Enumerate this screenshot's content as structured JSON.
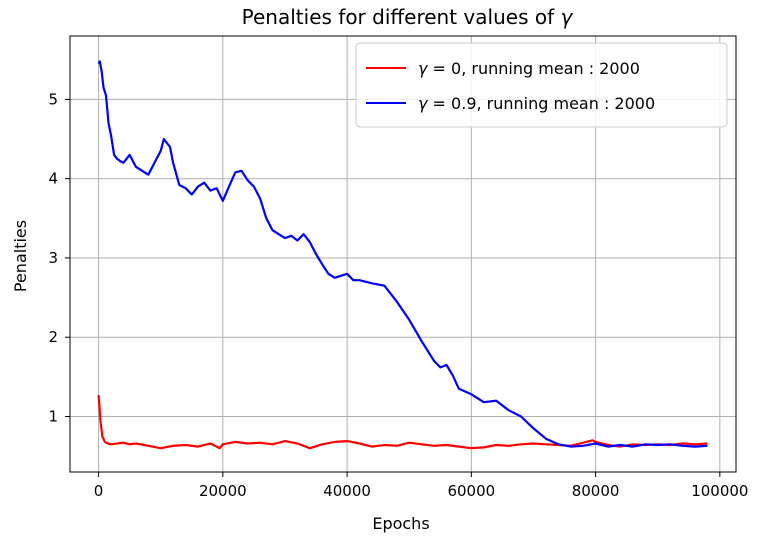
{
  "chart_data": {
    "type": "line",
    "title_prefix": "Penalties for different values of ",
    "title_symbol": "γ",
    "xlabel": "Epochs",
    "ylabel": "Penalties",
    "xlim": [
      -4600,
      102600
    ],
    "ylim": [
      0.3,
      5.8
    ],
    "x_ticks": [
      0,
      20000,
      40000,
      60000,
      80000,
      100000
    ],
    "x_tick_labels": [
      "0",
      "20000",
      "40000",
      "60000",
      "80000",
      "100000"
    ],
    "y_ticks": [
      1,
      2,
      3,
      4,
      5
    ],
    "y_tick_labels": [
      "1",
      "2",
      "3",
      "4",
      "5"
    ],
    "grid": true,
    "legend_position": "upper right",
    "series": [
      {
        "name": "γ = 0, running mean : 2000",
        "legend_symbol": "γ",
        "legend_text": " = 0, running mean : 2000",
        "color": "#ff0000",
        "x": [
          0,
          300,
          600,
          1000,
          1500,
          2000,
          3000,
          4000,
          5000,
          6000,
          8000,
          10000,
          12000,
          14000,
          16000,
          18000,
          19500,
          20000,
          22000,
          24000,
          26000,
          28000,
          30000,
          32000,
          34000,
          36000,
          38000,
          40000,
          42000,
          44000,
          46000,
          48000,
          50000,
          52000,
          54000,
          56000,
          58000,
          60000,
          62000,
          64000,
          66000,
          68000,
          70000,
          72000,
          74000,
          76000,
          78000,
          79500,
          80000,
          82000,
          84000,
          86000,
          88000,
          90000,
          92000,
          94000,
          96000,
          98000
        ],
        "y": [
          1.27,
          0.95,
          0.75,
          0.68,
          0.66,
          0.65,
          0.66,
          0.67,
          0.65,
          0.66,
          0.63,
          0.6,
          0.63,
          0.64,
          0.62,
          0.66,
          0.6,
          0.65,
          0.68,
          0.66,
          0.67,
          0.65,
          0.69,
          0.66,
          0.6,
          0.65,
          0.68,
          0.69,
          0.66,
          0.62,
          0.64,
          0.63,
          0.67,
          0.65,
          0.63,
          0.64,
          0.62,
          0.6,
          0.61,
          0.64,
          0.63,
          0.65,
          0.66,
          0.65,
          0.64,
          0.63,
          0.67,
          0.7,
          0.68,
          0.64,
          0.62,
          0.65,
          0.64,
          0.65,
          0.64,
          0.66,
          0.65,
          0.66
        ]
      },
      {
        "name": "γ = 0.9, running mean : 2000",
        "legend_symbol": "γ",
        "legend_text": " = 0.9, running mean : 2000",
        "color": "#0000ff",
        "x": [
          0,
          200,
          500,
          800,
          1200,
          1600,
          2000,
          2500,
          3000,
          3500,
          4000,
          5000,
          6000,
          7000,
          8000,
          9000,
          10000,
          10500,
          11500,
          12000,
          13000,
          14000,
          15000,
          16000,
          17000,
          18000,
          19000,
          20000,
          21000,
          22000,
          23000,
          24000,
          25000,
          26000,
          27000,
          28000,
          29000,
          30000,
          31000,
          32000,
          33000,
          34000,
          35000,
          36000,
          37000,
          38000,
          40000,
          41000,
          42000,
          44000,
          46000,
          48000,
          50000,
          52000,
          54000,
          55000,
          56000,
          57000,
          58000,
          60000,
          62000,
          64000,
          66000,
          68000,
          70000,
          72000,
          74000,
          76000,
          78000,
          80000,
          82000,
          84000,
          86000,
          88000,
          90000,
          92000,
          94000,
          96000,
          98000
        ],
        "y": [
          5.45,
          5.48,
          5.35,
          5.15,
          5.05,
          4.7,
          4.55,
          4.3,
          4.25,
          4.22,
          4.2,
          4.3,
          4.15,
          4.1,
          4.05,
          4.2,
          4.35,
          4.5,
          4.4,
          4.2,
          3.92,
          3.88,
          3.8,
          3.9,
          3.95,
          3.85,
          3.88,
          3.72,
          3.9,
          4.08,
          4.1,
          3.98,
          3.9,
          3.75,
          3.5,
          3.35,
          3.3,
          3.25,
          3.28,
          3.22,
          3.3,
          3.2,
          3.05,
          2.92,
          2.8,
          2.75,
          2.8,
          2.72,
          2.72,
          2.68,
          2.65,
          2.45,
          2.22,
          1.95,
          1.7,
          1.62,
          1.65,
          1.52,
          1.35,
          1.28,
          1.18,
          1.2,
          1.08,
          1.0,
          0.85,
          0.72,
          0.65,
          0.62,
          0.63,
          0.66,
          0.62,
          0.64,
          0.62,
          0.65,
          0.64,
          0.65,
          0.63,
          0.62,
          0.63
        ]
      }
    ]
  }
}
